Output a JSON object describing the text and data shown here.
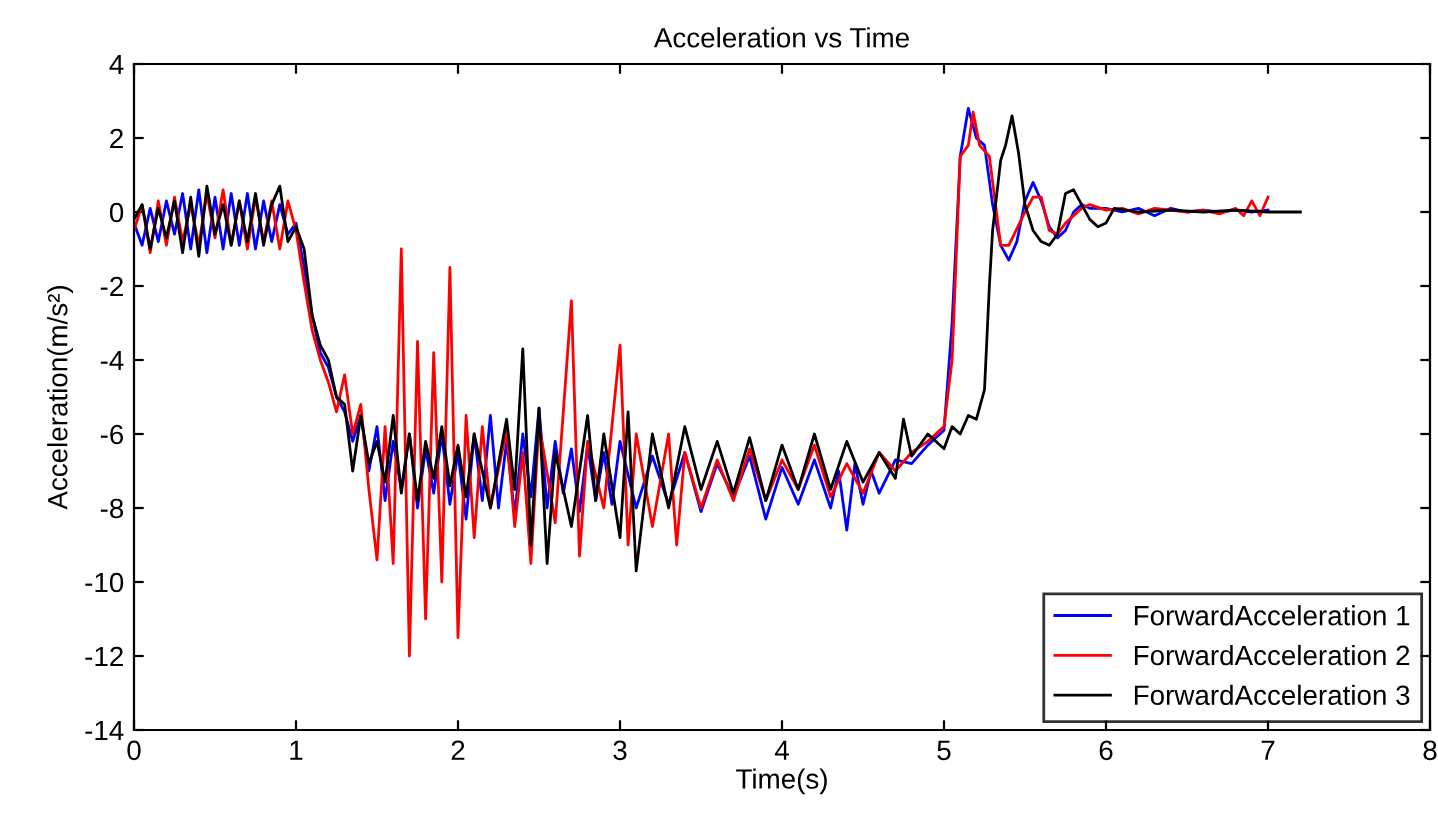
{
  "chart_data": {
    "type": "line",
    "title": "Acceleration vs Time",
    "xlabel": "Time(s)",
    "ylabel": "Acceleration(m/s²)",
    "xlim": [
      0,
      8
    ],
    "xticks": [
      0,
      1,
      2,
      3,
      4,
      5,
      6,
      7,
      8
    ],
    "ylim": [
      -14,
      4
    ],
    "yticks": [
      -14,
      -12,
      -10,
      -8,
      -6,
      -4,
      -2,
      0,
      2,
      4
    ],
    "grid": false,
    "legend": "bottom right",
    "line_style": "solid",
    "marker": "none",
    "series": [
      {
        "name": "ForwardAcceleration 1",
        "color": "#0000ff",
        "x": [
          0,
          0.05,
          0.1,
          0.15,
          0.2,
          0.25,
          0.3,
          0.35,
          0.4,
          0.45,
          0.5,
          0.55,
          0.6,
          0.65,
          0.7,
          0.75,
          0.8,
          0.85,
          0.9,
          0.95,
          1.0,
          1.05,
          1.1,
          1.15,
          1.2,
          1.25,
          1.3,
          1.35,
          1.4,
          1.45,
          1.5,
          1.55,
          1.6,
          1.65,
          1.7,
          1.75,
          1.8,
          1.85,
          1.9,
          1.95,
          2.0,
          2.05,
          2.1,
          2.15,
          2.2,
          2.25,
          2.3,
          2.35,
          2.4,
          2.45,
          2.5,
          2.55,
          2.6,
          2.65,
          2.7,
          2.75,
          2.8,
          2.85,
          2.9,
          2.95,
          3.0,
          3.1,
          3.2,
          3.3,
          3.4,
          3.5,
          3.6,
          3.7,
          3.8,
          3.9,
          4.0,
          4.1,
          4.2,
          4.3,
          4.35,
          4.4,
          4.45,
          4.5,
          4.55,
          4.6,
          4.7,
          4.8,
          4.9,
          5.0,
          5.05,
          5.1,
          5.15,
          5.2,
          5.25,
          5.3,
          5.35,
          5.4,
          5.45,
          5.5,
          5.55,
          5.6,
          5.65,
          5.7,
          5.75,
          5.8,
          5.85,
          5.9,
          6.0,
          6.1,
          6.2,
          6.3,
          6.4,
          6.5,
          6.6,
          6.7,
          6.8,
          6.9,
          7.0
        ],
        "values": [
          -0.3,
          -0.9,
          0.1,
          -0.8,
          0.3,
          -0.6,
          0.5,
          -1.0,
          0.6,
          -1.1,
          0.4,
          -1.0,
          0.5,
          -0.9,
          0.5,
          -1.0,
          0.3,
          -0.8,
          0.2,
          -0.6,
          -0.3,
          -1.5,
          -2.8,
          -3.8,
          -4.2,
          -5.0,
          -5.4,
          -6.2,
          -5.5,
          -7.0,
          -5.8,
          -7.8,
          -6.2,
          -7.5,
          -6.0,
          -8.0,
          -6.4,
          -7.6,
          -6.0,
          -7.9,
          -6.5,
          -8.3,
          -6.0,
          -7.8,
          -5.5,
          -8.0,
          -6.2,
          -8.2,
          -6.0,
          -7.7,
          -5.3,
          -8.0,
          -6.2,
          -7.6,
          -6.4,
          -8.1,
          -6.3,
          -7.8,
          -6.5,
          -7.9,
          -6.2,
          -8.0,
          -6.6,
          -7.9,
          -6.5,
          -8.1,
          -6.8,
          -7.7,
          -6.6,
          -8.3,
          -6.9,
          -7.9,
          -6.7,
          -8.0,
          -7.0,
          -8.6,
          -6.8,
          -7.9,
          -7.0,
          -7.6,
          -6.7,
          -6.8,
          -6.3,
          -5.9,
          -3.0,
          1.5,
          2.8,
          2.0,
          1.8,
          0.2,
          -0.9,
          -1.3,
          -0.8,
          0.3,
          0.8,
          0.3,
          -0.4,
          -0.7,
          -0.5,
          0,
          0.2,
          0.1,
          0.1,
          0.0,
          0.1,
          -0.1,
          0.1,
          0.0,
          0.05,
          0.0,
          0.05,
          0.0,
          0.05
        ]
      },
      {
        "name": "ForwardAcceleration 2",
        "color": "#ff0000",
        "x": [
          0,
          0.05,
          0.1,
          0.15,
          0.2,
          0.25,
          0.3,
          0.35,
          0.4,
          0.45,
          0.5,
          0.55,
          0.6,
          0.65,
          0.7,
          0.75,
          0.8,
          0.85,
          0.9,
          0.95,
          1.0,
          1.05,
          1.1,
          1.15,
          1.2,
          1.25,
          1.3,
          1.35,
          1.4,
          1.45,
          1.5,
          1.55,
          1.6,
          1.65,
          1.7,
          1.75,
          1.8,
          1.85,
          1.9,
          1.95,
          2.0,
          2.05,
          2.1,
          2.15,
          2.2,
          2.3,
          2.35,
          2.4,
          2.45,
          2.5,
          2.6,
          2.7,
          2.75,
          2.8,
          2.9,
          3.0,
          3.05,
          3.1,
          3.2,
          3.3,
          3.35,
          3.4,
          3.5,
          3.6,
          3.7,
          3.8,
          3.9,
          4.0,
          4.1,
          4.2,
          4.3,
          4.4,
          4.5,
          4.6,
          4.7,
          4.8,
          4.9,
          5.0,
          5.05,
          5.1,
          5.15,
          5.18,
          5.22,
          5.28,
          5.35,
          5.4,
          5.5,
          5.55,
          5.6,
          5.65,
          5.7,
          5.75,
          5.85,
          5.9,
          6.0,
          6.1,
          6.2,
          6.3,
          6.5,
          6.6,
          6.7,
          6.8,
          6.85,
          6.9,
          6.95,
          7.0
        ],
        "values": [
          -0.5,
          0.2,
          -1.1,
          0.3,
          -0.9,
          0.4,
          -0.8,
          0.2,
          -0.9,
          0.5,
          -0.7,
          0.6,
          -0.9,
          0.3,
          -1.0,
          0.4,
          -0.8,
          0.3,
          -1.0,
          0.3,
          -0.5,
          -1.9,
          -3.2,
          -4.0,
          -4.6,
          -5.4,
          -4.4,
          -6.0,
          -5.2,
          -7.5,
          -9.4,
          -5.8,
          -9.5,
          -1.0,
          -12.0,
          -3.5,
          -11.0,
          -3.8,
          -10.0,
          -1.5,
          -11.5,
          -5.5,
          -8.8,
          -5.8,
          -8.0,
          -5.9,
          -8.5,
          -6.5,
          -9.5,
          -5.7,
          -8.4,
          -2.4,
          -9.3,
          -6.2,
          -8.0,
          -3.6,
          -9.0,
          -6.0,
          -8.5,
          -6.0,
          -9.0,
          -6.5,
          -8.0,
          -6.7,
          -7.8,
          -6.4,
          -7.8,
          -6.7,
          -7.5,
          -6.3,
          -7.7,
          -6.8,
          -7.6,
          -6.5,
          -7.0,
          -6.5,
          -6.2,
          -5.8,
          -4.0,
          1.5,
          1.8,
          2.7,
          1.8,
          1.5,
          -0.9,
          -0.9,
          0.0,
          0.4,
          0.4,
          -0.5,
          -0.6,
          -0.3,
          0.1,
          0.2,
          0.05,
          0.1,
          -0.05,
          0.1,
          0.0,
          0.05,
          -0.05,
          0.1,
          -0.1,
          0.3,
          -0.1,
          0.4
        ]
      },
      {
        "name": "ForwardAcceleration 3",
        "color": "#000000",
        "x": [
          0,
          0.05,
          0.1,
          0.15,
          0.2,
          0.25,
          0.3,
          0.35,
          0.4,
          0.45,
          0.5,
          0.55,
          0.6,
          0.65,
          0.7,
          0.75,
          0.8,
          0.85,
          0.9,
          0.95,
          1.0,
          1.05,
          1.1,
          1.15,
          1.2,
          1.25,
          1.3,
          1.35,
          1.4,
          1.45,
          1.5,
          1.55,
          1.6,
          1.65,
          1.7,
          1.75,
          1.8,
          1.85,
          1.9,
          1.95,
          2.0,
          2.05,
          2.1,
          2.2,
          2.3,
          2.35,
          2.4,
          2.45,
          2.5,
          2.55,
          2.6,
          2.7,
          2.8,
          2.85,
          2.9,
          3.0,
          3.05,
          3.1,
          3.2,
          3.3,
          3.4,
          3.5,
          3.6,
          3.7,
          3.8,
          3.9,
          4.0,
          4.1,
          4.2,
          4.3,
          4.4,
          4.5,
          4.6,
          4.7,
          4.75,
          4.8,
          4.9,
          5.0,
          5.05,
          5.1,
          5.15,
          5.2,
          5.25,
          5.28,
          5.3,
          5.35,
          5.38,
          5.42,
          5.46,
          5.5,
          5.55,
          5.6,
          5.65,
          5.7,
          5.75,
          5.8,
          5.85,
          5.9,
          5.95,
          6.0,
          6.05,
          6.2,
          6.4,
          6.6,
          6.8,
          7.0,
          7.2
        ],
        "values": [
          -0.2,
          0.2,
          -1.0,
          0.1,
          -0.7,
          0.3,
          -1.1,
          0.4,
          -1.2,
          0.7,
          -0.6,
          0.2,
          -0.9,
          0.3,
          -0.8,
          0.5,
          -0.9,
          0.2,
          0.7,
          -0.8,
          -0.4,
          -1.0,
          -2.8,
          -3.6,
          -4.0,
          -5.0,
          -5.2,
          -7.0,
          -5.5,
          -6.8,
          -6.2,
          -7.3,
          -5.5,
          -7.6,
          -6.0,
          -7.8,
          -6.2,
          -7.2,
          -5.8,
          -7.4,
          -6.3,
          -7.7,
          -6.0,
          -8.0,
          -5.6,
          -7.5,
          -3.7,
          -9.0,
          -5.3,
          -9.5,
          -6.5,
          -8.5,
          -5.5,
          -7.8,
          -6.0,
          -8.8,
          -5.4,
          -9.7,
          -6.0,
          -8.0,
          -5.8,
          -7.5,
          -6.2,
          -7.6,
          -6.1,
          -7.8,
          -6.3,
          -7.5,
          -6.0,
          -7.5,
          -6.2,
          -7.3,
          -6.5,
          -7.2,
          -5.6,
          -6.6,
          -6.0,
          -6.4,
          -5.8,
          -6.0,
          -5.5,
          -5.6,
          -4.8,
          -2.0,
          -0.5,
          1.4,
          1.8,
          2.6,
          1.6,
          0.2,
          -0.5,
          -0.8,
          -0.9,
          -0.6,
          0.5,
          0.6,
          0.2,
          -0.2,
          -0.4,
          -0.3,
          0.1,
          0.0,
          0.05,
          0.0,
          0.05,
          0.0,
          0.0
        ]
      }
    ]
  }
}
